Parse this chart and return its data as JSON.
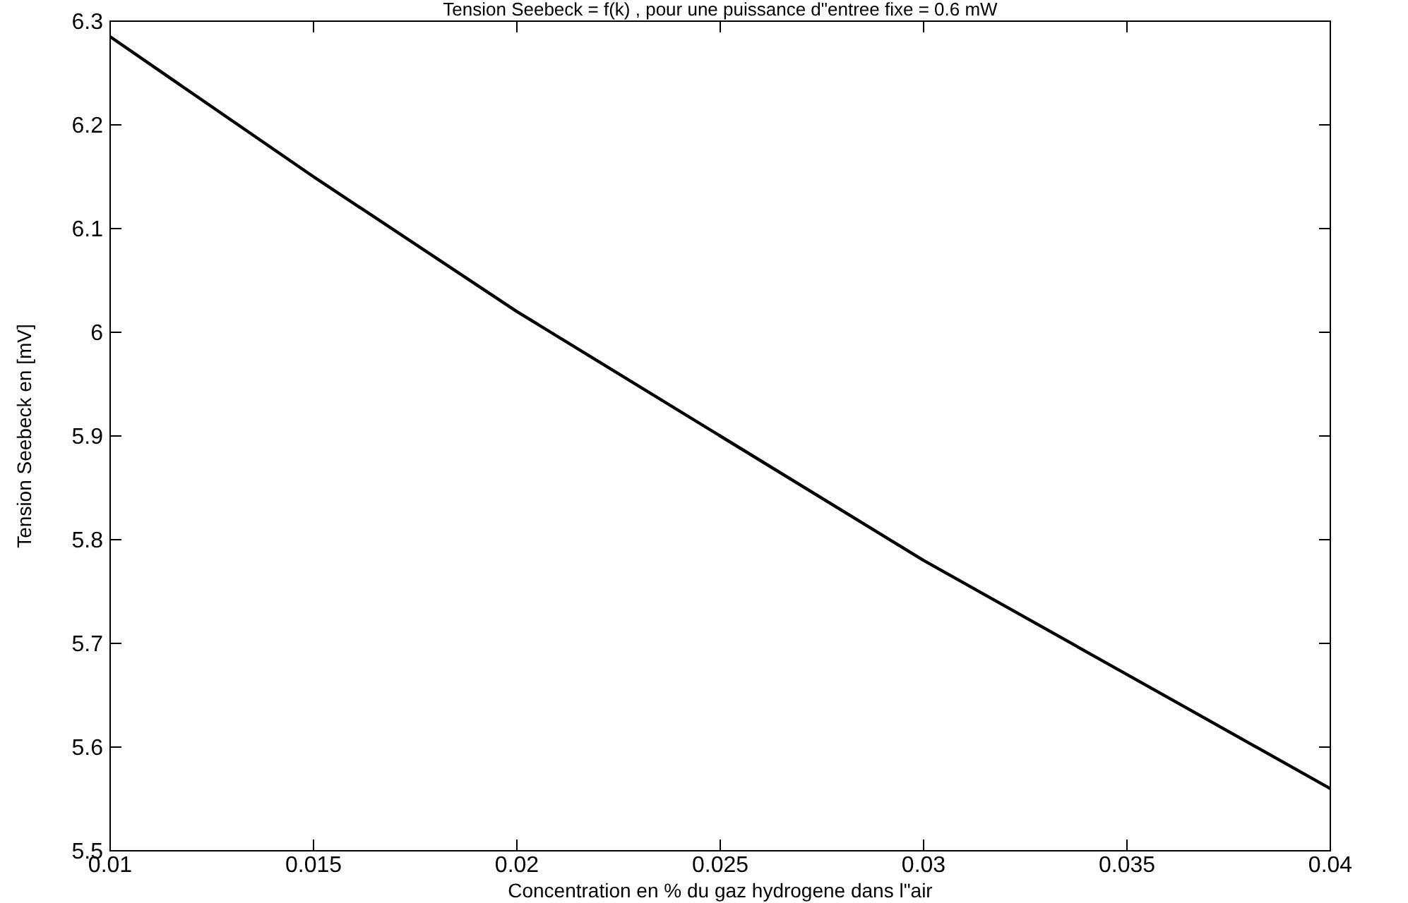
{
  "chart_data": {
    "type": "line",
    "title": "Tension Seebeck = f(k) , pour une puissance d\"entree fixe = 0.6 mW",
    "xlabel": "Concentration en % du gaz hydrogene dans l\"air",
    "ylabel": "Tension Seebeck en [mV]",
    "x": [
      0.01,
      0.015,
      0.02,
      0.025,
      0.03,
      0.035,
      0.04
    ],
    "series": [
      {
        "color": "#000000",
        "values": [
          6.285,
          6.15,
          6.02,
          5.9,
          5.78,
          5.67,
          5.56
        ]
      }
    ],
    "xlim": [
      0.01,
      0.04
    ],
    "xticks": [
      0.01,
      0.015,
      0.02,
      0.025,
      0.03,
      0.035,
      0.04
    ],
    "ylim": [
      5.5,
      6.3
    ],
    "yticks": [
      5.5,
      5.6,
      5.7,
      5.8,
      5.9,
      6,
      6.1,
      6.2,
      6.3
    ],
    "grid": false,
    "marker": "none",
    "line_style": "solid"
  }
}
